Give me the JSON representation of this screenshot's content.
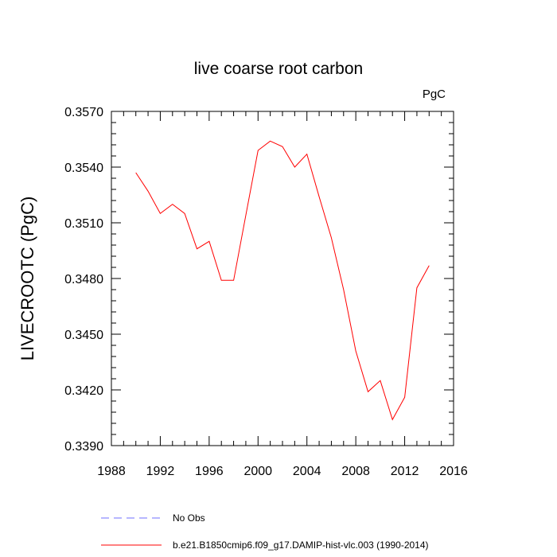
{
  "chart_data": {
    "type": "line",
    "title": "live coarse root carbon",
    "units_label": "PgC",
    "ylabel": "LIVECROOTC  (PgC)",
    "xlabel": "",
    "xlim": [
      1988,
      2016
    ],
    "ylim": [
      0.339,
      0.357
    ],
    "x_ticks": [
      1988,
      1992,
      1996,
      2000,
      2004,
      2008,
      2012,
      2016
    ],
    "x_tick_labels": [
      "1988",
      "1992",
      "1996",
      "2000",
      "2004",
      "2008",
      "2012",
      "2016"
    ],
    "y_ticks": [
      0.339,
      0.342,
      0.345,
      0.348,
      0.351,
      0.354,
      0.357
    ],
    "y_tick_labels": [
      "0.3390",
      "0.3420",
      "0.3450",
      "0.3480",
      "0.3510",
      "0.3540",
      "0.3570"
    ],
    "series": [
      {
        "name": "b.e21.B1850cmip6.f09_g17.DAMIP-hist-vlc.003 (1990-2014)",
        "color": "#ff0000",
        "style": "solid",
        "x": [
          1990,
          1991,
          1992,
          1993,
          1994,
          1995,
          1996,
          1997,
          1998,
          1999,
          2000,
          2001,
          2002,
          2003,
          2004,
          2005,
          2006,
          2007,
          2008,
          2009,
          2010,
          2011,
          2012,
          2013,
          2014
        ],
        "y": [
          0.3537,
          0.3527,
          0.3515,
          0.352,
          0.3515,
          0.3496,
          0.35,
          0.3479,
          0.3479,
          0.3514,
          0.3549,
          0.3554,
          0.3551,
          0.354,
          0.3547,
          0.3524,
          0.3502,
          0.3474,
          0.3441,
          0.3419,
          0.3425,
          0.3404,
          0.3416,
          0.3475,
          0.3487
        ]
      }
    ],
    "legend": [
      {
        "label": "No Obs",
        "color": "#6f6fff",
        "style": "dashed"
      },
      {
        "label": "b.e21.B1850cmip6.f09_g17.DAMIP-hist-vlc.003 (1990-2014)",
        "color": "#ff0000",
        "style": "solid"
      }
    ],
    "legend_position": "bottom"
  }
}
